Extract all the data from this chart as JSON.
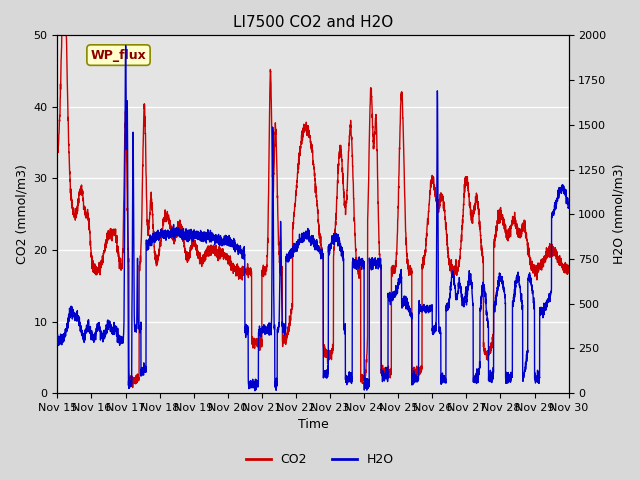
{
  "title": "LI7500 CO2 and H2O",
  "xlabel": "Time",
  "ylabel_left": "CO2 (mmol/m3)",
  "ylabel_right": "H2O (mmol/m3)",
  "xlim": [
    0,
    15
  ],
  "ylim_left": [
    0,
    50
  ],
  "ylim_right": [
    0,
    2000
  ],
  "x_tick_labels": [
    "Nov 15",
    "Nov 16",
    "Nov 17",
    "Nov 18",
    "Nov 19",
    "Nov 20",
    "Nov 21",
    "Nov 22",
    "Nov 23",
    "Nov 24",
    "Nov 25",
    "Nov 26",
    "Nov 27",
    "Nov 28",
    "Nov 29",
    "Nov 30"
  ],
  "co2_color": "#cc0000",
  "h2o_color": "#0000cc",
  "background_color": "#d8d8d8",
  "plot_bg_color": "#e4e4e4",
  "annotation_text": "WP_flux",
  "annotation_bg": "#ffffcc",
  "annotation_border": "#888800",
  "title_fontsize": 11,
  "axis_fontsize": 9,
  "tick_fontsize": 8,
  "legend_fontsize": 9,
  "linewidth": 1.0
}
